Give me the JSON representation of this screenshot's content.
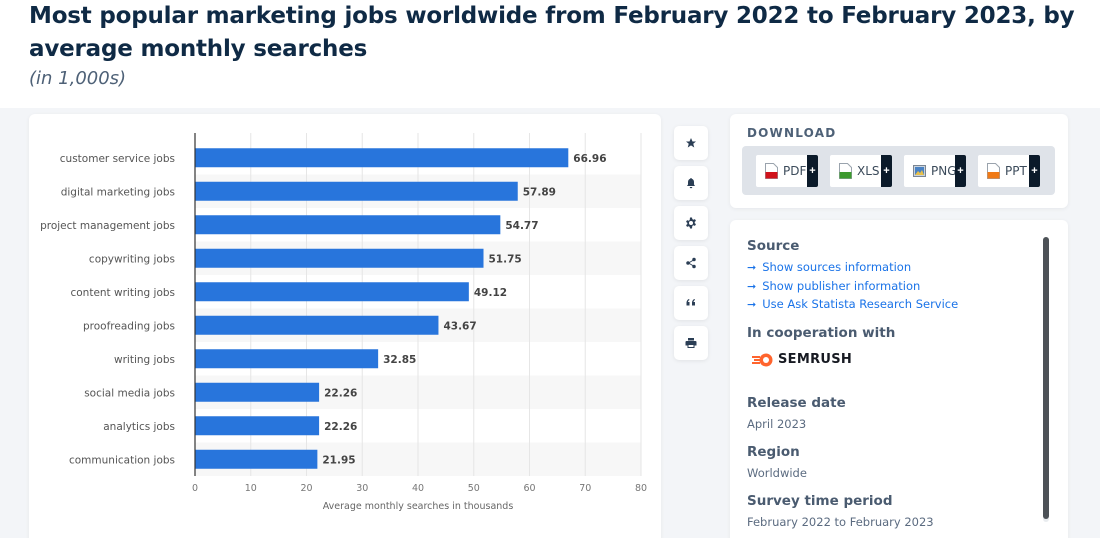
{
  "header": {
    "title": "Most popular marketing jobs worldwide from February 2022 to February 2023, by average monthly searches",
    "subtitle": "(in 1,000s)"
  },
  "toolbar": {
    "tools": [
      {
        "name": "favorite",
        "icon": "star-icon"
      },
      {
        "name": "notification",
        "icon": "bell-icon"
      },
      {
        "name": "settings",
        "icon": "gear-icon"
      },
      {
        "name": "share",
        "icon": "share-icon"
      },
      {
        "name": "cite",
        "icon": "quote-icon"
      },
      {
        "name": "print",
        "icon": "print-icon"
      }
    ]
  },
  "download": {
    "title": "DOWNLOAD",
    "buttons": [
      {
        "label": "PDF",
        "plus": "+",
        "color": "#d0121b"
      },
      {
        "label": "XLS",
        "plus": "+",
        "color": "#3d9a2f"
      },
      {
        "label": "PNG",
        "plus": "+",
        "color": "#4a82c4"
      },
      {
        "label": "PPT",
        "plus": "+",
        "color": "#f07a16"
      }
    ]
  },
  "info": {
    "source_heading": "Source",
    "links": [
      "Show sources information",
      "Show publisher information",
      "Use Ask Statista Research Service"
    ],
    "cooperation_heading": "In cooperation with",
    "partner": "SEMRUSH",
    "release_heading": "Release date",
    "release_value": "April 2023",
    "region_heading": "Region",
    "region_value": "Worldwide",
    "survey_heading": "Survey time period",
    "survey_value": "February 2022 to February 2023"
  },
  "chart_data": {
    "type": "bar",
    "orientation": "horizontal",
    "title": "Most popular marketing jobs worldwide from February 2022 to February 2023, by average monthly searches",
    "subtitle": "(in 1,000s)",
    "categories": [
      "customer service jobs",
      "digital marketing jobs",
      "project management jobs",
      "copywriting jobs",
      "content writing jobs",
      "proofreading jobs",
      "writing jobs",
      "social media jobs",
      "analytics jobs",
      "communication jobs"
    ],
    "values": [
      66.96,
      57.89,
      54.77,
      51.75,
      49.12,
      43.67,
      32.85,
      22.26,
      22.26,
      21.95
    ],
    "value_labels": [
      "66.96",
      "57.89",
      "54.77",
      "51.75",
      "49.12",
      "43.67",
      "32.85",
      "22.26",
      "22.26",
      "21.95"
    ],
    "xlabel": "Average monthly searches in thousands",
    "ylabel": "",
    "xlim": [
      0,
      80
    ],
    "xticks": [
      0,
      10,
      20,
      30,
      40,
      50,
      60,
      70,
      80
    ],
    "xtick_labels": [
      "0",
      "10",
      "20",
      "30",
      "40",
      "50",
      "60",
      "70",
      "80"
    ],
    "grid": true,
    "bar_color": "#2875dc",
    "legend": "none"
  }
}
